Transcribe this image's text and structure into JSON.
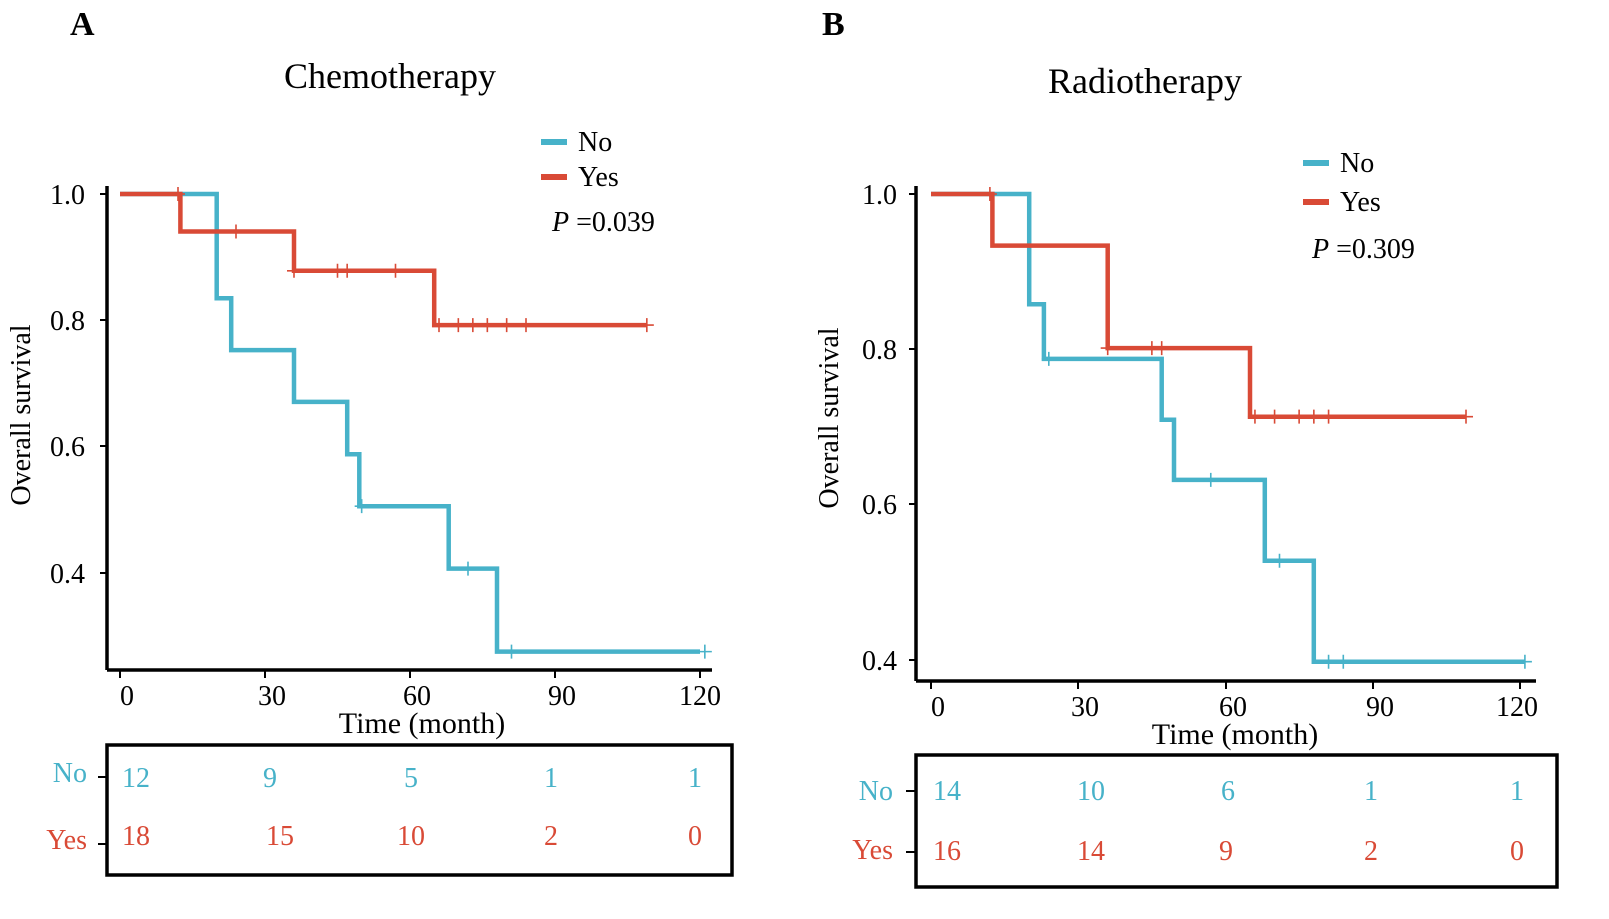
{
  "colors": {
    "no": "#47B2C9",
    "yes": "#D94A36",
    "axis": "#000000"
  },
  "chart_data": [
    {
      "type": "line",
      "panel_label": "A",
      "title": "Chemotherapy",
      "xlabel": "Time (month)",
      "ylabel": "Overall survival",
      "xlim": [
        0,
        120
      ],
      "ylim": [
        0.26,
        1.0
      ],
      "x_ticks": [
        0,
        30,
        60,
        90,
        120
      ],
      "y_ticks": [
        0.4,
        0.6,
        0.8,
        1.0
      ],
      "y_tick_labels": [
        "0.4",
        "0.6",
        "0.8",
        "1.0"
      ],
      "legend": [
        "No",
        "Yes"
      ],
      "legend_position": "top-right",
      "p_label": "P",
      "p_value": " =0.039",
      "series": [
        {
          "name": "No",
          "color_key": "no",
          "steps": [
            [
              0,
              1.0
            ],
            [
              20,
              0.833
            ],
            [
              23,
              0.75
            ],
            [
              36,
              0.667
            ],
            [
              47,
              0.583
            ],
            [
              49.5,
              0.5
            ],
            [
              68,
              0.4
            ],
            [
              78,
              0.267
            ]
          ],
          "end_x": 120,
          "censors": [
            [
              50,
              0.5
            ],
            [
              72,
              0.4
            ],
            [
              81,
              0.267
            ],
            [
              121,
              0.267
            ]
          ]
        },
        {
          "name": "Yes",
          "color_key": "yes",
          "steps": [
            [
              0,
              1.0
            ],
            [
              12.5,
              0.94
            ],
            [
              36,
              0.877
            ],
            [
              65,
              0.79
            ]
          ],
          "end_x": 109,
          "censors": [
            [
              12,
              1.0
            ],
            [
              24,
              0.94
            ],
            [
              36,
              0.877
            ],
            [
              45,
              0.877
            ],
            [
              47,
              0.877
            ],
            [
              57,
              0.877
            ],
            [
              66,
              0.79
            ],
            [
              70,
              0.79
            ],
            [
              73,
              0.79
            ],
            [
              76,
              0.79
            ],
            [
              80,
              0.79
            ],
            [
              84,
              0.79
            ],
            [
              109,
              0.79
            ]
          ]
        }
      ],
      "risk_table": {
        "rows": [
          {
            "label": "No",
            "color_key": "no",
            "values": [
              "12",
              "9",
              "5",
              "1",
              "1"
            ]
          },
          {
            "label": "Yes",
            "color_key": "yes",
            "values": [
              "18",
              "15",
              "10",
              "2",
              "0"
            ]
          }
        ]
      }
    },
    {
      "type": "line",
      "panel_label": "B",
      "title": "Radiotherapy",
      "xlabel": "Time (month)",
      "ylabel": "Overall survival",
      "xlim": [
        0,
        120
      ],
      "ylim": [
        0.39,
        1.0
      ],
      "x_ticks": [
        0,
        30,
        60,
        90,
        120
      ],
      "y_ticks": [
        0.4,
        0.6,
        0.8,
        1.0
      ],
      "y_tick_labels": [
        "0.4",
        "0.6",
        "0.8",
        "1.0"
      ],
      "legend": [
        "No",
        "Yes"
      ],
      "legend_position": "top-right",
      "p_label": "P",
      "p_value": " =0.309",
      "series": [
        {
          "name": "No",
          "color_key": "no",
          "steps": [
            [
              0,
              1.0
            ],
            [
              20,
              0.857
            ],
            [
              23,
              0.786
            ],
            [
              47,
              0.707
            ],
            [
              49.5,
              0.629
            ],
            [
              68,
              0.524
            ],
            [
              78,
              0.393
            ]
          ],
          "end_x": 121,
          "censors": [
            [
              24,
              0.786
            ],
            [
              57,
              0.629
            ],
            [
              71,
              0.524
            ],
            [
              81,
              0.393
            ],
            [
              84,
              0.393
            ],
            [
              121,
              0.393
            ]
          ]
        },
        {
          "name": "Yes",
          "color_key": "yes",
          "steps": [
            [
              0,
              1.0
            ],
            [
              12.5,
              0.933
            ],
            [
              36,
              0.8
            ],
            [
              65,
              0.711
            ]
          ],
          "end_x": 109,
          "censors": [
            [
              12,
              1.0
            ],
            [
              36,
              0.8
            ],
            [
              45,
              0.8
            ],
            [
              47,
              0.8
            ],
            [
              66,
              0.711
            ],
            [
              70,
              0.711
            ],
            [
              75,
              0.711
            ],
            [
              78,
              0.711
            ],
            [
              81,
              0.711
            ],
            [
              109,
              0.711
            ]
          ]
        }
      ],
      "risk_table": {
        "rows": [
          {
            "label": "No",
            "color_key": "no",
            "values": [
              "14",
              "10",
              "6",
              "1",
              "1"
            ]
          },
          {
            "label": "Yes",
            "color_key": "yes",
            "values": [
              "16",
              "14",
              "9",
              "2",
              "0"
            ]
          }
        ]
      }
    }
  ]
}
